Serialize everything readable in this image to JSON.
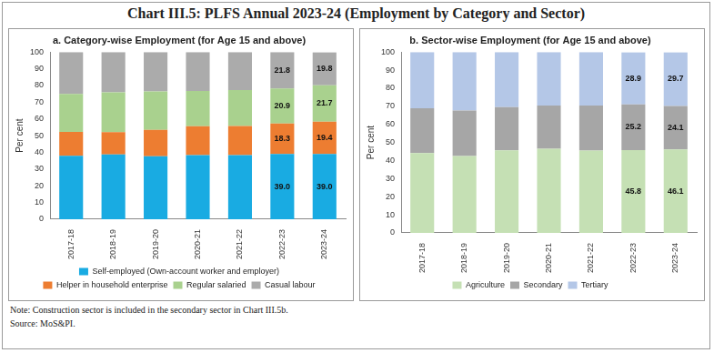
{
  "title": "Chart III.5: PLFS Annual 2023-24 (Employment by Category and Sector)",
  "chart_data": [
    {
      "type": "bar",
      "stacked": true,
      "title": "a. Category-wise Employment (for Age 15 and above)",
      "ylabel": "Per cent",
      "categories": [
        "2017-18",
        "2018-19",
        "2019-20",
        "2020-21",
        "2021-22",
        "2022-23",
        "2023-24"
      ],
      "series": [
        {
          "name": "Self-employed (Own-account worker and employer)",
          "color": "#19ABE2",
          "values": [
            38.0,
            38.8,
            37.6,
            38.3,
            38.3,
            39.0,
            39.0
          ],
          "value_labels": [
            null,
            null,
            null,
            null,
            null,
            "39.0",
            "39.0"
          ]
        },
        {
          "name": "Helper in household enterprise",
          "color": "#ED7D31",
          "values": [
            14.2,
            13.3,
            15.9,
            17.3,
            17.5,
            18.3,
            19.4
          ],
          "value_labels": [
            null,
            null,
            null,
            null,
            null,
            "18.3",
            "19.4"
          ]
        },
        {
          "name": "Regular salaried",
          "color": "#A9D18E",
          "values": [
            22.8,
            23.8,
            22.9,
            21.1,
            21.5,
            20.9,
            21.7
          ],
          "value_labels": [
            null,
            null,
            null,
            null,
            null,
            "20.9",
            "21.7"
          ]
        },
        {
          "name": "Casual labour",
          "color": "#ABABAB",
          "values": [
            25.0,
            24.1,
            23.6,
            23.3,
            22.7,
            21.8,
            19.8
          ],
          "value_labels": [
            null,
            null,
            null,
            null,
            null,
            "21.8",
            "19.8"
          ]
        }
      ],
      "ylim": [
        0,
        100
      ],
      "yticks": [
        0,
        10,
        20,
        30,
        40,
        50,
        60,
        70,
        80,
        90,
        100
      ],
      "grid": false,
      "legend": "bottom",
      "data_labels": true
    },
    {
      "type": "bar",
      "stacked": true,
      "title": "b. Sector-wise Employment (for Age 15 and above)",
      "ylabel": "Per cent",
      "categories": [
        "2017-18",
        "2018-19",
        "2019-20",
        "2020-21",
        "2021-22",
        "2022-23",
        "2023-24"
      ],
      "series": [
        {
          "name": "Agriculture",
          "color": "#C5E0B4",
          "values": [
            44.1,
            42.5,
            45.6,
            46.5,
            45.5,
            45.8,
            46.1
          ],
          "value_labels": [
            null,
            null,
            null,
            null,
            null,
            "45.8",
            "46.1"
          ]
        },
        {
          "name": "Secondary",
          "color": "#A6A6A6",
          "values": [
            24.8,
            25.1,
            24.0,
            23.9,
            24.9,
            25.2,
            24.1
          ],
          "value_labels": [
            null,
            null,
            null,
            null,
            null,
            "25.2",
            "24.1"
          ]
        },
        {
          "name": "Tertiary",
          "color": "#B4C7E7",
          "values": [
            31.1,
            32.4,
            30.4,
            29.6,
            29.6,
            28.9,
            29.7
          ],
          "value_labels": [
            null,
            null,
            null,
            null,
            null,
            "28.9",
            "29.7"
          ]
        }
      ],
      "ylim": [
        0,
        100
      ],
      "yticks": [
        0,
        10,
        20,
        30,
        40,
        50,
        60,
        70,
        80,
        90,
        100
      ],
      "grid": false,
      "legend": "bottom",
      "data_labels": true
    }
  ],
  "note": "Note: Construction sector is included in the secondary sector in Chart III.5b.",
  "source": "Source: MoS&PI."
}
